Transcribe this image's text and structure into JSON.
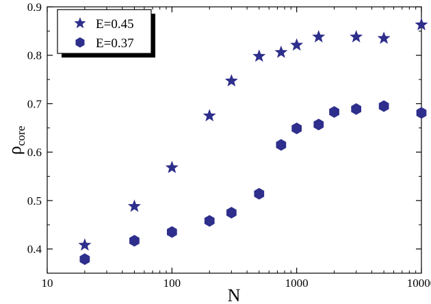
{
  "chart_data": {
    "type": "scatter",
    "xlabel": "N",
    "ylabel": "ρ",
    "ylabel_subscript": "core",
    "x_scale": "log",
    "xlim": [
      10,
      10000
    ],
    "ylim": [
      0.35,
      0.9
    ],
    "x_ticks": [
      10,
      100,
      1000,
      10000
    ],
    "x_tick_labels": [
      "10",
      "100",
      "1000",
      "10000"
    ],
    "y_ticks": [
      0.4,
      0.5,
      0.6,
      0.7,
      0.8,
      0.9
    ],
    "y_tick_labels": [
      "0.4",
      "0.5",
      "0.6",
      "0.7",
      "0.8",
      "0.9"
    ],
    "grid": false,
    "legend_position": "top-left",
    "marker_color": "#2e2e8c",
    "series": [
      {
        "name": "E=0.45",
        "marker": "star",
        "x": [
          20,
          50,
          100,
          200,
          300,
          500,
          750,
          1000,
          1500,
          3000,
          5000,
          10000
        ],
        "y": [
          0.408,
          0.488,
          0.568,
          0.675,
          0.747,
          0.798,
          0.806,
          0.821,
          0.838,
          0.838,
          0.835,
          0.863
        ]
      },
      {
        "name": "E=0.37",
        "marker": "hexagon",
        "x": [
          20,
          50,
          100,
          200,
          300,
          500,
          750,
          1000,
          1500,
          2000,
          3000,
          5000,
          10000
        ],
        "y": [
          0.379,
          0.417,
          0.435,
          0.458,
          0.475,
          0.514,
          0.615,
          0.649,
          0.657,
          0.683,
          0.689,
          0.695,
          0.681
        ]
      }
    ]
  }
}
